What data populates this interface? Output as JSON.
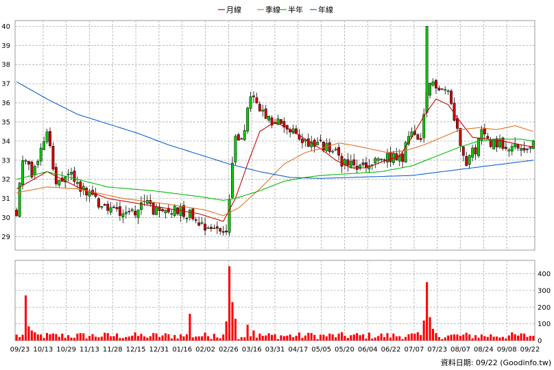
{
  "chart_data": {
    "type": "candlestick",
    "legend": [
      {
        "name": "月線",
        "color": "#cc0000"
      },
      {
        "name": "季線",
        "color": "#e07020"
      },
      {
        "name": "半年",
        "color": "#00bb00"
      },
      {
        "name": "年線",
        "color": "#1060cc"
      }
    ],
    "price_axis": {
      "min": 28.3,
      "max": 40.3,
      "ticks": [
        29,
        30,
        31,
        32,
        33,
        34,
        35,
        36,
        37,
        38,
        39,
        40
      ]
    },
    "volume_axis": {
      "min": 0,
      "max": 480,
      "ticks": [
        0,
        100,
        200,
        300,
        400
      ]
    },
    "x_labels": [
      "09/23",
      "10/13",
      "10/29",
      "11/13",
      "11/28",
      "12/15",
      "12/31",
      "01/16",
      "02/02",
      "02/26",
      "03/16",
      "03/31",
      "04/17",
      "05/05",
      "05/20",
      "06/04",
      "06/22",
      "07/07",
      "07/23",
      "08/07",
      "08/24",
      "09/08",
      "09/22"
    ],
    "footer": "資料日期: 09/22 (Goodinfo.tw)",
    "price_anchors": [
      [
        0,
        30.3
      ],
      [
        2,
        33.2
      ],
      [
        5,
        32.2
      ],
      [
        8,
        33.5
      ],
      [
        10,
        34.7
      ],
      [
        13,
        31.5
      ],
      [
        17,
        32.4
      ],
      [
        20,
        31.8
      ],
      [
        24,
        31.2
      ],
      [
        28,
        30.6
      ],
      [
        33,
        30.4
      ],
      [
        38,
        30.3
      ],
      [
        43,
        30.8
      ],
      [
        47,
        30.1
      ],
      [
        52,
        30.5
      ],
      [
        57,
        30.2
      ],
      [
        62,
        29.6
      ],
      [
        66,
        29.4
      ],
      [
        69,
        29.3
      ],
      [
        70,
        31.0
      ],
      [
        72,
        34.2
      ],
      [
        75,
        34.4
      ],
      [
        77,
        36.5
      ],
      [
        80,
        35.5
      ],
      [
        84,
        34.9
      ],
      [
        87,
        35.0
      ],
      [
        90,
        34.5
      ],
      [
        95,
        34.0
      ],
      [
        100,
        33.8
      ],
      [
        104,
        33.5
      ],
      [
        108,
        32.8
      ],
      [
        112,
        32.6
      ],
      [
        116,
        32.7
      ],
      [
        120,
        33.0
      ],
      [
        124,
        33.2
      ],
      [
        127,
        32.9
      ],
      [
        129,
        34.5
      ],
      [
        131,
        34.2
      ],
      [
        133,
        33.8
      ],
      [
        135,
        36.5
      ],
      [
        137,
        37.1
      ],
      [
        140,
        36.8
      ],
      [
        142,
        36.6
      ],
      [
        144,
        35.2
      ],
      [
        146,
        34.0
      ],
      [
        148,
        33.0
      ],
      [
        151,
        33.6
      ],
      [
        153,
        34.4
      ],
      [
        156,
        34.0
      ],
      [
        159,
        33.9
      ],
      [
        162,
        33.8
      ],
      [
        165,
        33.6
      ],
      [
        168,
        33.7
      ],
      [
        170,
        33.8
      ]
    ],
    "ma_lines": {
      "月線": [
        [
          0,
          31.5
        ],
        [
          10,
          32.4
        ],
        [
          20,
          31.6
        ],
        [
          30,
          31.0
        ],
        [
          45,
          30.6
        ],
        [
          60,
          30.2
        ],
        [
          68,
          29.8
        ],
        [
          72,
          31.0
        ],
        [
          76,
          32.8
        ],
        [
          80,
          34.5
        ],
        [
          85,
          35.0
        ],
        [
          90,
          34.6
        ],
        [
          96,
          34.0
        ],
        [
          100,
          33.6
        ],
        [
          105,
          33.0
        ],
        [
          110,
          32.6
        ],
        [
          115,
          32.6
        ],
        [
          120,
          32.9
        ],
        [
          126,
          33.2
        ],
        [
          130,
          34.2
        ],
        [
          134,
          35.3
        ],
        [
          138,
          36.2
        ],
        [
          142,
          35.9
        ],
        [
          146,
          35.0
        ],
        [
          150,
          34.2
        ],
        [
          155,
          34.1
        ],
        [
          160,
          34.0
        ],
        [
          166,
          33.8
        ],
        [
          170,
          33.7
        ]
      ],
      "季線": [
        [
          0,
          31.3
        ],
        [
          10,
          31.6
        ],
        [
          20,
          31.5
        ],
        [
          35,
          31.0
        ],
        [
          50,
          30.7
        ],
        [
          62,
          30.4
        ],
        [
          68,
          30.1
        ],
        [
          73,
          30.5
        ],
        [
          80,
          31.5
        ],
        [
          88,
          32.8
        ],
        [
          95,
          33.4
        ],
        [
          100,
          33.6
        ],
        [
          106,
          33.9
        ],
        [
          110,
          33.8
        ],
        [
          116,
          33.6
        ],
        [
          122,
          33.4
        ],
        [
          128,
          33.5
        ],
        [
          134,
          33.8
        ],
        [
          140,
          34.2
        ],
        [
          146,
          34.6
        ],
        [
          152,
          34.7
        ],
        [
          158,
          34.6
        ],
        [
          164,
          34.8
        ],
        [
          170,
          34.5
        ]
      ],
      "半年": [
        [
          0,
          32.0
        ],
        [
          10,
          32.4
        ],
        [
          20,
          32.0
        ],
        [
          30,
          31.6
        ],
        [
          45,
          31.4
        ],
        [
          60,
          31.1
        ],
        [
          68,
          30.9
        ],
        [
          72,
          31.0
        ],
        [
          80,
          31.4
        ],
        [
          88,
          31.9
        ],
        [
          95,
          32.1
        ],
        [
          100,
          32.2
        ],
        [
          110,
          32.3
        ],
        [
          120,
          32.4
        ],
        [
          130,
          32.7
        ],
        [
          138,
          33.2
        ],
        [
          146,
          33.7
        ],
        [
          152,
          34.0
        ],
        [
          160,
          34.1
        ],
        [
          166,
          34.1
        ],
        [
          170,
          34.0
        ]
      ],
      "年線": [
        [
          0,
          37.1
        ],
        [
          10,
          36.2
        ],
        [
          20,
          35.4
        ],
        [
          30,
          34.9
        ],
        [
          40,
          34.4
        ],
        [
          50,
          33.8
        ],
        [
          60,
          33.3
        ],
        [
          70,
          32.8
        ],
        [
          80,
          32.4
        ],
        [
          90,
          32.1
        ],
        [
          100,
          32.05
        ],
        [
          110,
          32.1
        ],
        [
          120,
          32.15
        ],
        [
          130,
          32.2
        ],
        [
          140,
          32.4
        ],
        [
          150,
          32.6
        ],
        [
          160,
          32.8
        ],
        [
          170,
          33.0
        ]
      ]
    }
  }
}
